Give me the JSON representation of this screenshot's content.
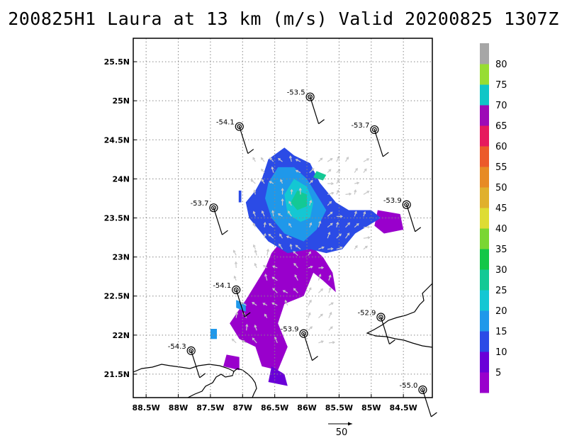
{
  "title": "200825H1 Laura at 13 km (m/s) Valid 20200825 1307Z",
  "lon_ticks": [
    "88.5W",
    "88W",
    "87.5W",
    "87W",
    "86.5W",
    "86W",
    "85.5W",
    "85W",
    "84.5W"
  ],
  "lat_ticks": [
    "25.5N",
    "25N",
    "24.5N",
    "24N",
    "23.5N",
    "23N",
    "22.5N",
    "22N",
    "21.5N"
  ],
  "colorbar": {
    "colors": [
      "#9900cc",
      "#6a00d8",
      "#2b4be6",
      "#1f98ea",
      "#14c7d3",
      "#13c995",
      "#13c748",
      "#7ad632",
      "#dedc34",
      "#e0b02c",
      "#e78b24",
      "#ec5a2a",
      "#e61a5e",
      "#9d0ab7",
      "#0fc6c7",
      "#97dd32",
      "#a6a6a6"
    ],
    "labels": [
      "5",
      "10",
      "15",
      "20",
      "25",
      "30",
      "35",
      "40",
      "45",
      "50",
      "55",
      "60",
      "65",
      "70",
      "75",
      "80"
    ]
  },
  "dropsondes": [
    {
      "value": "-53.5",
      "lon": -85.95,
      "lat": 25.05
    },
    {
      "value": "-54.1",
      "lon": -87.05,
      "lat": 24.67
    },
    {
      "value": "-53.7",
      "lon": -84.95,
      "lat": 24.63
    },
    {
      "value": "-53.7",
      "lon": -87.45,
      "lat": 23.63
    },
    {
      "value": "-53.9",
      "lon": -84.45,
      "lat": 23.67
    },
    {
      "value": "-54.1",
      "lon": -87.1,
      "lat": 22.58
    },
    {
      "value": "-52.9",
      "lon": -84.85,
      "lat": 22.23
    },
    {
      "value": "-53.9",
      "lon": -86.05,
      "lat": 22.02
    },
    {
      "value": "-54.3",
      "lon": -87.8,
      "lat": 21.8
    },
    {
      "value": "-55.0",
      "lon": -84.2,
      "lat": 21.3
    }
  ],
  "reference_vector": {
    "label": "50"
  }
}
